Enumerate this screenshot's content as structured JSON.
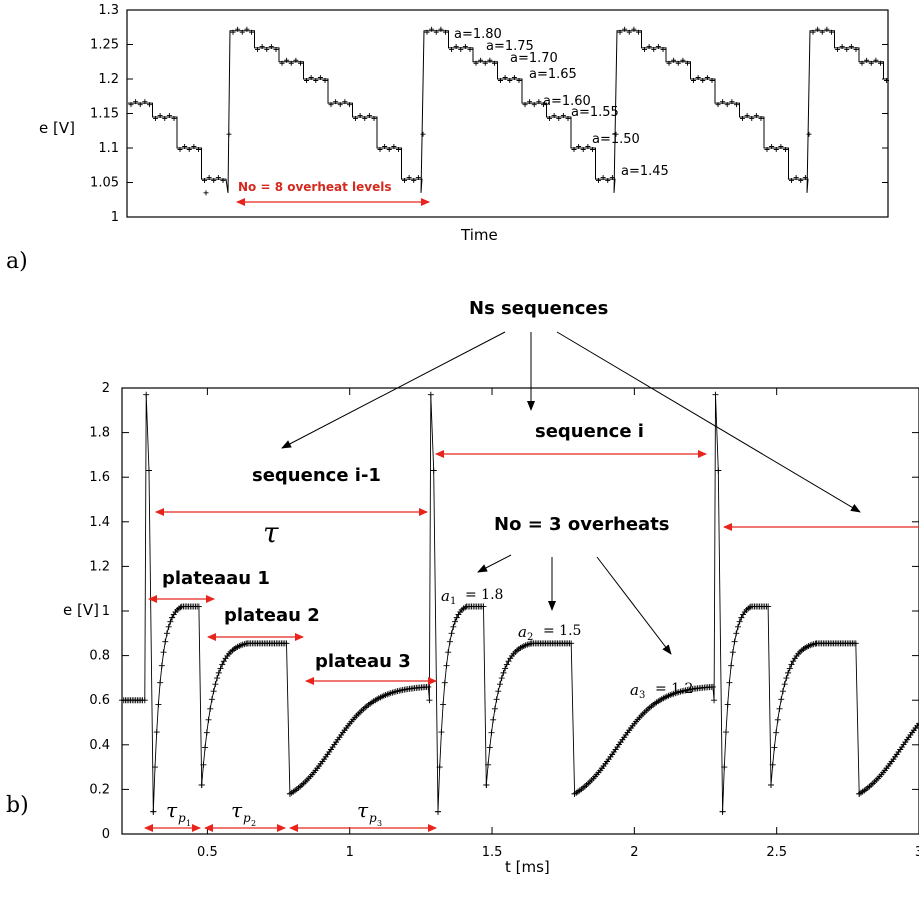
{
  "panels": {
    "a": "a)",
    "b": "b)"
  },
  "chart_data": [
    {
      "type": "line",
      "xlabel": "Time",
      "ylabel": "e [V]",
      "ylim": [
        1,
        1.3
      ],
      "yticks": [
        "1",
        "1.05",
        "1.1",
        "1.15",
        "1.2",
        "1.25",
        "1.3"
      ],
      "levels": [
        1.27,
        1.245,
        1.225,
        1.2,
        1.165,
        1.145,
        1.1,
        1.055
      ],
      "overheat_labels": [
        "a=1.80",
        "a=1.75",
        "a=1.70",
        "a=1.65",
        "a=1.60",
        "a=1.55",
        "a=1.50",
        "a=1.45"
      ],
      "annotation": "No = 8 overheat levels",
      "grid": false
    },
    {
      "type": "line",
      "xlabel": "t  [ms]",
      "ylabel": "e  [V]",
      "xlim": [
        0.2,
        3
      ],
      "ylim": [
        0,
        2
      ],
      "xticks": [
        "0.5",
        "1",
        "1.5",
        "2",
        "2.5",
        "3"
      ],
      "yticks": [
        "0",
        "0.2",
        "0.4",
        "0.6",
        "0.8",
        "1",
        "1.2",
        "1.4",
        "1.6",
        "1.8",
        "2"
      ],
      "sequence_starts_ms": [
        0.28,
        1.28,
        2.28
      ],
      "peak_V": 1.97,
      "plateaus_V": [
        1.02,
        0.855,
        0.6
      ],
      "initial_level_V": 0.6,
      "annotations": {
        "ns": "Ns sequences",
        "seq_i": "sequence i",
        "seq_im1": "sequence i-1",
        "tau": "τ",
        "no3": "No = 3 overheats",
        "plateau1": "plateaau 1",
        "plateau2": "plateau 2",
        "plateau3": "plateau 3",
        "a1": "= 1.8",
        "a2": "= 1.5",
        "a3": "= 1.2"
      },
      "grid": false
    }
  ],
  "colors": {
    "arrow": "#e8241c",
    "annotation_red": "#d42a20",
    "line": "#000000"
  }
}
